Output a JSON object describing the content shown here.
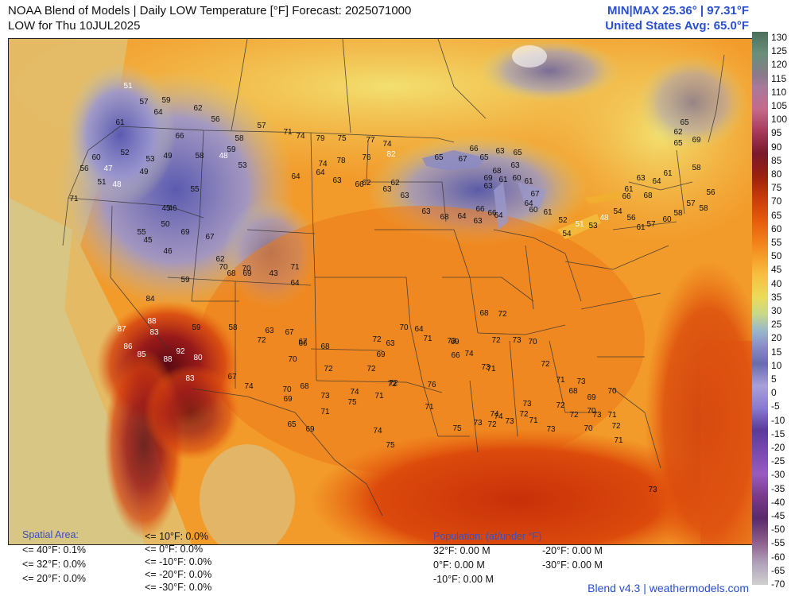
{
  "title": {
    "line1": "NOAA Blend of Models | Daily LOW Temperature [°F] Forecast: 2025071000",
    "line2": "LOW for Thu 10JUL2025"
  },
  "minmax": {
    "line1": "MIN|MAX 25.36° | 97.31°F",
    "line2": "United States Avg: 65.0°F"
  },
  "colorbar": {
    "labels": [
      "130",
      "125",
      "120",
      "115",
      "110",
      "105",
      "100",
      "95",
      "90",
      "85",
      "80",
      "75",
      "70",
      "65",
      "60",
      "55",
      "50",
      "45",
      "40",
      "35",
      "30",
      "25",
      "20",
      "15",
      "10",
      "5",
      "0",
      "-5",
      "-10",
      "-15",
      "-20",
      "-25",
      "-30",
      "-35",
      "-40",
      "-45",
      "-50",
      "-55",
      "-60",
      "-65",
      "-70"
    ]
  },
  "spatial": {
    "heading": "Spatial Area:",
    "items": [
      "<= 40°F: 0.1%",
      "<= 32°F: 0.0%",
      "<= 20°F: 0.0%",
      "<= 10°F: 0.0%",
      "<= 0°F: 0.0%",
      "<= -10°F: 0.0%",
      "<= -20°F: 0.0%",
      "<= -30°F: 0.0%"
    ]
  },
  "population": {
    "heading": "Population: (at/under °F)",
    "items": [
      "32°F: 0.00 M",
      "0°F: 0.00 M",
      "-10°F: 0.00 M",
      "-20°F: 0.00 M",
      "-30°F: 0.00 M"
    ]
  },
  "footer": "Blend v4.3 | weathermodels.com",
  "map_labels": [
    {
      "t": "51",
      "c": "w"
    },
    {
      "t": "57"
    },
    {
      "t": "59"
    },
    {
      "t": "64"
    },
    {
      "t": "61"
    },
    {
      "t": "66"
    },
    {
      "t": "62"
    },
    {
      "t": "56"
    },
    {
      "t": "57"
    },
    {
      "t": "58"
    },
    {
      "t": "59"
    },
    {
      "t": "52"
    },
    {
      "t": "53"
    },
    {
      "t": "49"
    },
    {
      "t": "58"
    },
    {
      "t": "48",
      "c": "w"
    },
    {
      "t": "53"
    },
    {
      "t": "60"
    },
    {
      "t": "47",
      "c": "w"
    },
    {
      "t": "56"
    },
    {
      "t": "49"
    },
    {
      "t": "51"
    },
    {
      "t": "48",
      "c": "w"
    },
    {
      "t": "55"
    },
    {
      "t": "45"
    },
    {
      "t": "46"
    },
    {
      "t": "71"
    },
    {
      "t": "50"
    },
    {
      "t": "55"
    },
    {
      "t": "45"
    },
    {
      "t": "46"
    },
    {
      "t": "69"
    },
    {
      "t": "67"
    },
    {
      "t": "62"
    },
    {
      "t": "68"
    },
    {
      "t": "69"
    },
    {
      "t": "59"
    },
    {
      "t": "70"
    },
    {
      "t": "70"
    },
    {
      "t": "43"
    },
    {
      "t": "71"
    },
    {
      "t": "64"
    },
    {
      "t": "84"
    },
    {
      "t": "88",
      "c": "w"
    },
    {
      "t": "83",
      "c": "w"
    },
    {
      "t": "87",
      "c": "w"
    },
    {
      "t": "86",
      "c": "w"
    },
    {
      "t": "85",
      "c": "w"
    },
    {
      "t": "88",
      "c": "w"
    },
    {
      "t": "92",
      "c": "w"
    },
    {
      "t": "80",
      "c": "w"
    },
    {
      "t": "83",
      "c": "w"
    },
    {
      "t": "59"
    },
    {
      "t": "58"
    },
    {
      "t": "72"
    },
    {
      "t": "63"
    },
    {
      "t": "66"
    },
    {
      "t": "68"
    },
    {
      "t": "67"
    },
    {
      "t": "74"
    },
    {
      "t": "70"
    },
    {
      "t": "68"
    },
    {
      "t": "69"
    },
    {
      "t": "73"
    },
    {
      "t": "74"
    },
    {
      "t": "72"
    },
    {
      "t": "65"
    },
    {
      "t": "69"
    },
    {
      "t": "71"
    },
    {
      "t": "75"
    },
    {
      "t": "74"
    },
    {
      "t": "75"
    },
    {
      "t": "72"
    },
    {
      "t": "71"
    },
    {
      "t": "76"
    },
    {
      "t": "75"
    },
    {
      "t": "73"
    },
    {
      "t": "74"
    },
    {
      "t": "73"
    },
    {
      "t": "72"
    },
    {
      "t": "71"
    },
    {
      "t": "73"
    },
    {
      "t": "72"
    },
    {
      "t": "70"
    },
    {
      "t": "73"
    },
    {
      "t": "71"
    },
    {
      "t": "70"
    },
    {
      "t": "69"
    },
    {
      "t": "68"
    },
    {
      "t": "73"
    },
    {
      "t": "71"
    },
    {
      "t": "72"
    },
    {
      "t": "70"
    },
    {
      "t": "73"
    },
    {
      "t": "72"
    },
    {
      "t": "73"
    },
    {
      "t": "71"
    },
    {
      "t": "69"
    },
    {
      "t": "68"
    },
    {
      "t": "72"
    },
    {
      "t": "67"
    },
    {
      "t": "70"
    },
    {
      "t": "67"
    },
    {
      "t": "72"
    },
    {
      "t": "72"
    },
    {
      "t": "71"
    },
    {
      "t": "69"
    },
    {
      "t": "72"
    },
    {
      "t": "70"
    },
    {
      "t": "63"
    },
    {
      "t": "64"
    },
    {
      "t": "71"
    },
    {
      "t": "66"
    },
    {
      "t": "73"
    },
    {
      "t": "74"
    },
    {
      "t": "72"
    },
    {
      "t": "74"
    },
    {
      "t": "73"
    },
    {
      "t": "72"
    },
    {
      "t": "70"
    },
    {
      "t": "72"
    },
    {
      "t": "71"
    },
    {
      "t": "73"
    },
    {
      "t": "71"
    },
    {
      "t": "74"
    },
    {
      "t": "79"
    },
    {
      "t": "75"
    },
    {
      "t": "77"
    },
    {
      "t": "74"
    },
    {
      "t": "74"
    },
    {
      "t": "78"
    },
    {
      "t": "76"
    },
    {
      "t": "82",
      "c": "w"
    },
    {
      "t": "62"
    },
    {
      "t": "62"
    },
    {
      "t": "64"
    },
    {
      "t": "64"
    },
    {
      "t": "63"
    },
    {
      "t": "66"
    },
    {
      "t": "63"
    },
    {
      "t": "63"
    },
    {
      "t": "63"
    },
    {
      "t": "68"
    },
    {
      "t": "64"
    },
    {
      "t": "63"
    },
    {
      "t": "66"
    },
    {
      "t": "66"
    },
    {
      "t": "64"
    },
    {
      "t": "65"
    },
    {
      "t": "67"
    },
    {
      "t": "66"
    },
    {
      "t": "65"
    },
    {
      "t": "63"
    },
    {
      "t": "65"
    },
    {
      "t": "63"
    },
    {
      "t": "68"
    },
    {
      "t": "69"
    },
    {
      "t": "63"
    },
    {
      "t": "61"
    },
    {
      "t": "60"
    },
    {
      "t": "61"
    },
    {
      "t": "67"
    },
    {
      "t": "64"
    },
    {
      "t": "60"
    },
    {
      "t": "61"
    },
    {
      "t": "52"
    },
    {
      "t": "54"
    },
    {
      "t": "51",
      "c": "w"
    },
    {
      "t": "53"
    },
    {
      "t": "48",
      "c": "w"
    },
    {
      "t": "54"
    },
    {
      "t": "56"
    },
    {
      "t": "61"
    },
    {
      "t": "57"
    },
    {
      "t": "60"
    },
    {
      "t": "58"
    },
    {
      "t": "57"
    },
    {
      "t": "58"
    },
    {
      "t": "56"
    },
    {
      "t": "58"
    },
    {
      "t": "61"
    },
    {
      "t": "64"
    },
    {
      "t": "63"
    },
    {
      "t": "61"
    },
    {
      "t": "66"
    },
    {
      "t": "68"
    },
    {
      "t": "65"
    },
    {
      "t": "69"
    },
    {
      "t": "62"
    },
    {
      "t": "65"
    },
    {
      "t": "64"
    },
    {
      "t": "66"
    },
    {
      "t": "70"
    },
    {
      "t": "71"
    },
    {
      "t": "72"
    },
    {
      "t": "69"
    },
    {
      "t": "69"
    },
    {
      "t": "67"
    },
    {
      "t": "68"
    },
    {
      "t": "70"
    },
    {
      "t": "70"
    },
    {
      "t": "71"
    },
    {
      "t": "72"
    },
    {
      "t": "73"
    },
    {
      "t": "71"
    },
    {
      "t": "70"
    },
    {
      "t": "72"
    },
    {
      "t": "73"
    },
    {
      "t": "73"
    },
    {
      "t": "72"
    },
    {
      "t": "74"
    },
    {
      "t": "75"
    },
    {
      "t": "77"
    },
    {
      "t": "76"
    },
    {
      "t": "58"
    },
    {
      "t": "62"
    },
    {
      "t": "62"
    },
    {
      "t": "62"
    },
    {
      "t": "60"
    },
    {
      "t": "63"
    },
    {
      "t": "66"
    },
    {
      "t": "65"
    },
    {
      "t": "69"
    },
    {
      "t": "70"
    },
    {
      "t": "71"
    },
    {
      "t": "73"
    },
    {
      "t": "53"
    },
    {
      "t": "52"
    },
    {
      "t": "57"
    },
    {
      "t": "55"
    }
  ]
}
